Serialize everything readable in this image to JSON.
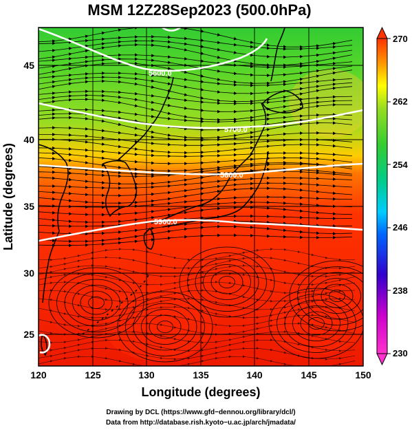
{
  "title": "MSM 12Z28Sep2023 (500.0hPa)",
  "xlabel": "Longitude (degrees)",
  "ylabel": "Latitude  (degrees)",
  "x_ticks": [
    "120",
    "125",
    "130",
    "135",
    "140",
    "145",
    "150"
  ],
  "y_ticks": [
    "25",
    "30",
    "35",
    "40",
    "45"
  ],
  "colorbar": {
    "ticks": [
      "270",
      "262",
      "254",
      "246",
      "238",
      "230"
    ],
    "min": 230,
    "max": 270,
    "colors": [
      "#ff33cc",
      "#cc00cc",
      "#3300cc",
      "#0066ff",
      "#00ccff",
      "#00cc88",
      "#33cc33",
      "#99dd22",
      "#ffff00",
      "#ff9900",
      "#ff3300",
      "#ee1100"
    ]
  },
  "contours": [
    {
      "label": "5600.0",
      "value": 5600
    },
    {
      "label": "5700.0",
      "value": 5700
    },
    {
      "label": "5800.0",
      "value": 5800
    },
    {
      "label": "5900.0",
      "value": 5900
    }
  ],
  "credits": [
    "Drawing by DCL (https://www.gfd−dennou.org/library/dcl/)",
    "Data from http://database.rish.kyoto−u.ac.jp/arch/jmadata/"
  ]
}
